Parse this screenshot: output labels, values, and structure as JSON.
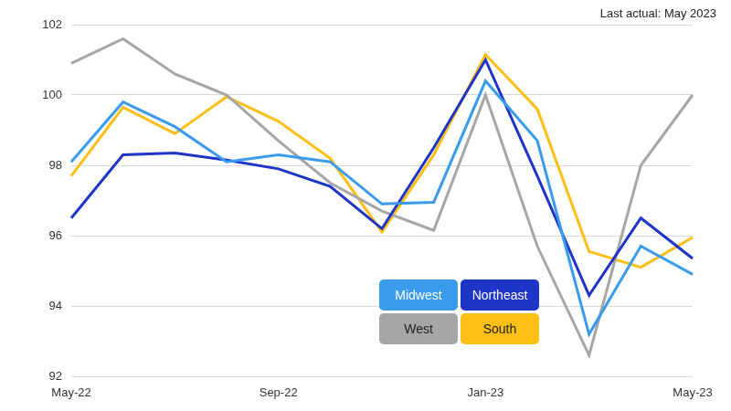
{
  "chart_data": {
    "type": "line",
    "annotation": "Last actual: May 2023",
    "categories": [
      "May-22",
      null,
      null,
      null,
      "Sep-22",
      null,
      null,
      null,
      "Jan-23",
      null,
      null,
      null,
      "May-23"
    ],
    "series": [
      {
        "name": "Midwest",
        "color": "#3a9bea",
        "values": [
          98.1,
          99.8,
          99.1,
          98.1,
          98.3,
          98.1,
          96.9,
          96.95,
          100.4,
          98.7,
          93.2,
          95.7,
          94.9
        ]
      },
      {
        "name": "Northeast",
        "color": "#1e35c8",
        "values": [
          96.5,
          98.3,
          98.35,
          98.15,
          97.9,
          97.4,
          96.2,
          98.5,
          101.0,
          97.7,
          94.3,
          96.5,
          95.35
        ]
      },
      {
        "name": "West",
        "color": "#a6a6a6",
        "values": [
          100.9,
          101.6,
          100.6,
          100.0,
          98.7,
          97.5,
          96.7,
          96.15,
          100.0,
          95.7,
          92.6,
          98.0,
          100.0
        ]
      },
      {
        "name": "South",
        "color": "#fbbf16",
        "values": [
          97.7,
          99.65,
          98.9,
          99.95,
          99.25,
          98.2,
          96.1,
          98.3,
          101.15,
          99.6,
          95.55,
          95.1,
          95.95
        ]
      }
    ],
    "ylim": [
      92,
      102
    ],
    "yticks": [
      92,
      94,
      96,
      98,
      100,
      102
    ],
    "grid": true,
    "legend": "center"
  }
}
